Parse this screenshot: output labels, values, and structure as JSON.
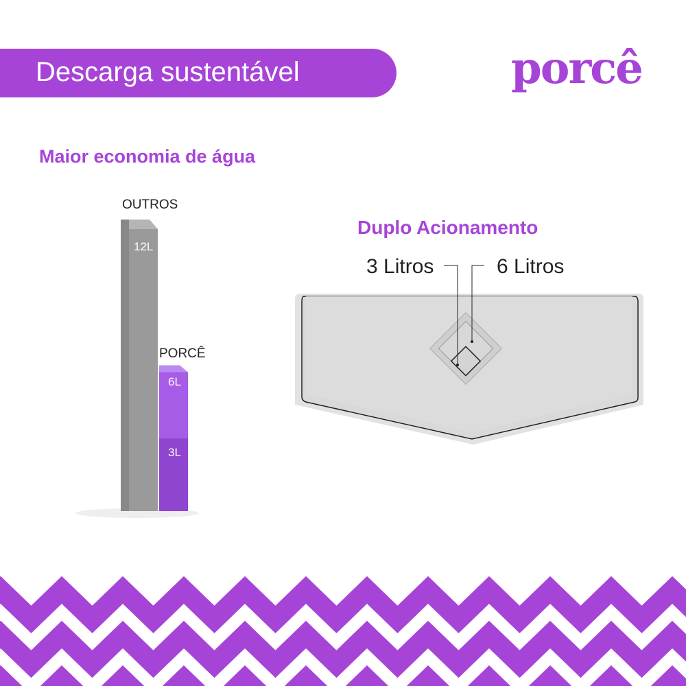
{
  "header": {
    "title": "Descarga sustentável"
  },
  "logo": {
    "text": "porcê"
  },
  "left": {
    "subtitle": "Maior economia de água"
  },
  "chart_data": {
    "type": "bar",
    "categories": [
      "OUTROS",
      "PORCÊ"
    ],
    "series": [
      {
        "values": [
          12,
          6
        ]
      }
    ],
    "porce_split": [
      3,
      6
    ],
    "labels": {
      "outros": "12L",
      "porce_high": "6L",
      "porce_low": "3L"
    },
    "unit": "L",
    "colors": {
      "outros": "#9a9a9a",
      "porce": "#a65ce6",
      "porce_low": "#8f45cf"
    }
  },
  "right": {
    "title": "Duplo Acionamento",
    "label_3": "3 Litros",
    "label_6": "6 Litros"
  },
  "colors": {
    "brand": "#a744d8"
  }
}
